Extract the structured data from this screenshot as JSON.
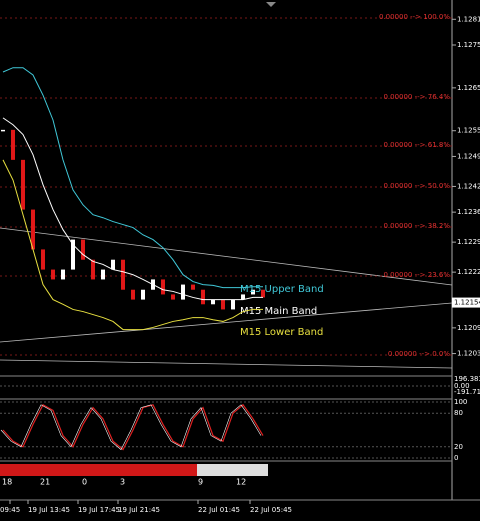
{
  "main_chart": {
    "ylim": [
      1.11985,
      1.1286
    ],
    "yticks": [
      1.12815,
      1.12755,
      1.12655,
      1.12555,
      1.12495,
      1.12425,
      1.12365,
      1.12295,
      1.12225,
      1.12095,
      1.12035
    ],
    "current_price": 1.12154,
    "series": [
      {
        "name": "M15 Upper Band",
        "color": "#40c8d8",
        "values": [
          1.12692,
          1.12702,
          1.12702,
          1.12685,
          1.12638,
          1.1258,
          1.12487,
          1.12417,
          1.12382,
          1.12359,
          1.12352,
          1.12343,
          1.12336,
          1.12329,
          1.12312,
          1.12301,
          1.12282,
          1.12254,
          1.12219,
          1.12203,
          1.12196,
          1.12194,
          1.12189,
          1.12189,
          1.12189,
          1.12191,
          1.12191
        ]
      },
      {
        "name": "M15 Main Band",
        "color": "#ffffff",
        "values": [
          1.12585,
          1.12569,
          1.12546,
          1.12499,
          1.12429,
          1.12371,
          1.12324,
          1.12289,
          1.12266,
          1.1225,
          1.12243,
          1.12231,
          1.12226,
          1.12219,
          1.12208,
          1.12196,
          1.12184,
          1.1218,
          1.12173,
          1.12166,
          1.12161,
          1.12161,
          1.12161,
          1.12161,
          1.12161,
          1.12166,
          1.12166
        ]
      },
      {
        "name": "M15 Lower Band",
        "color": "#e8e040",
        "values": [
          1.12487,
          1.1244,
          1.12359,
          1.12278,
          1.12196,
          1.12161,
          1.1215,
          1.12138,
          1.12133,
          1.12126,
          1.12119,
          1.1211,
          1.12091,
          1.12091,
          1.12091,
          1.12096,
          1.12103,
          1.1211,
          1.12114,
          1.12119,
          1.12119,
          1.12114,
          1.1211,
          1.12119,
          1.12133,
          1.12138,
          1.12138
        ]
      }
    ],
    "closes": [
      1.12557,
      1.12487,
      1.12371,
      1.12278,
      1.12231,
      1.12208,
      1.12231,
      1.12301,
      1.12254,
      1.12208,
      1.12231,
      1.12254,
      1.12184,
      1.12161,
      1.12184,
      1.12208,
      1.12173,
      1.12161,
      1.12196,
      1.12184,
      1.1215,
      1.12161,
      1.12138,
      1.12161,
      1.12173,
      1.12184,
      1.12166
    ],
    "fib_labels": [
      "0.00000 --> 100.0%",
      "0.00000 --> 76.4%",
      "0.00000 --> 61.8%",
      "0.00000 --> 50.0%",
      "0.00000 --> 38.2%",
      "0.00000 --> 23.6%",
      "0.00000 --> 0.0%"
    ]
  },
  "cci_panel": {
    "labels": [
      "196.383",
      "0.00",
      "-191.71"
    ]
  },
  "stoch_panel": {
    "ylim": [
      0,
      100
    ],
    "yticks": [
      100,
      80,
      20,
      0
    ],
    "values": [
      50,
      30,
      20,
      60,
      95,
      85,
      40,
      20,
      60,
      90,
      70,
      30,
      15,
      50,
      90,
      95,
      60,
      30,
      20,
      70,
      90,
      40,
      30,
      80,
      95,
      70,
      40
    ]
  },
  "hour_labels": [
    "18",
    "21",
    "0",
    "3",
    "9",
    "12"
  ],
  "time_labels": [
    "09:45",
    "19 Jul 13:45",
    "19 Jul 17:45",
    "19 Jul 21:45",
    "22 Jul 01:45",
    "22 Jul 05:45"
  ]
}
